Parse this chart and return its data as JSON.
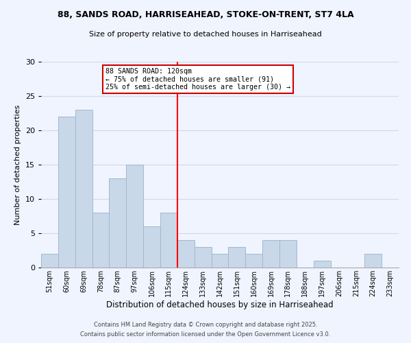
{
  "title_line1": "88, SANDS ROAD, HARRISEAHEAD, STOKE-ON-TRENT, ST7 4LA",
  "title_line2": "Size of property relative to detached houses in Harriseahead",
  "xlabel": "Distribution of detached houses by size in Harriseahead",
  "ylabel": "Number of detached properties",
  "footer_line1": "Contains HM Land Registry data © Crown copyright and database right 2025.",
  "footer_line2": "Contains public sector information licensed under the Open Government Licence v3.0.",
  "bin_labels": [
    "51sqm",
    "60sqm",
    "69sqm",
    "78sqm",
    "87sqm",
    "97sqm",
    "106sqm",
    "115sqm",
    "124sqm",
    "133sqm",
    "142sqm",
    "151sqm",
    "160sqm",
    "169sqm",
    "178sqm",
    "188sqm",
    "197sqm",
    "206sqm",
    "215sqm",
    "224sqm",
    "233sqm"
  ],
  "bar_values": [
    2,
    22,
    23,
    8,
    13,
    15,
    6,
    8,
    4,
    3,
    2,
    3,
    2,
    4,
    4,
    0,
    1,
    0,
    0,
    2,
    0
  ],
  "bar_color": "#c8d8e8",
  "bar_edge_color": "#a0b8d0",
  "vline_x": 7.5,
  "vline_color": "red",
  "annotation_title": "88 SANDS ROAD: 120sqm",
  "annotation_line2": "← 75% of detached houses are smaller (91)",
  "annotation_line3": "25% of semi-detached houses are larger (30) →",
  "annotation_box_color": "#ffffff",
  "annotation_box_edge": "#cc0000",
  "ylim": [
    0,
    30
  ],
  "yticks": [
    0,
    5,
    10,
    15,
    20,
    25,
    30
  ],
  "grid_color": "#d0d8e8",
  "background_color": "#f0f4ff"
}
